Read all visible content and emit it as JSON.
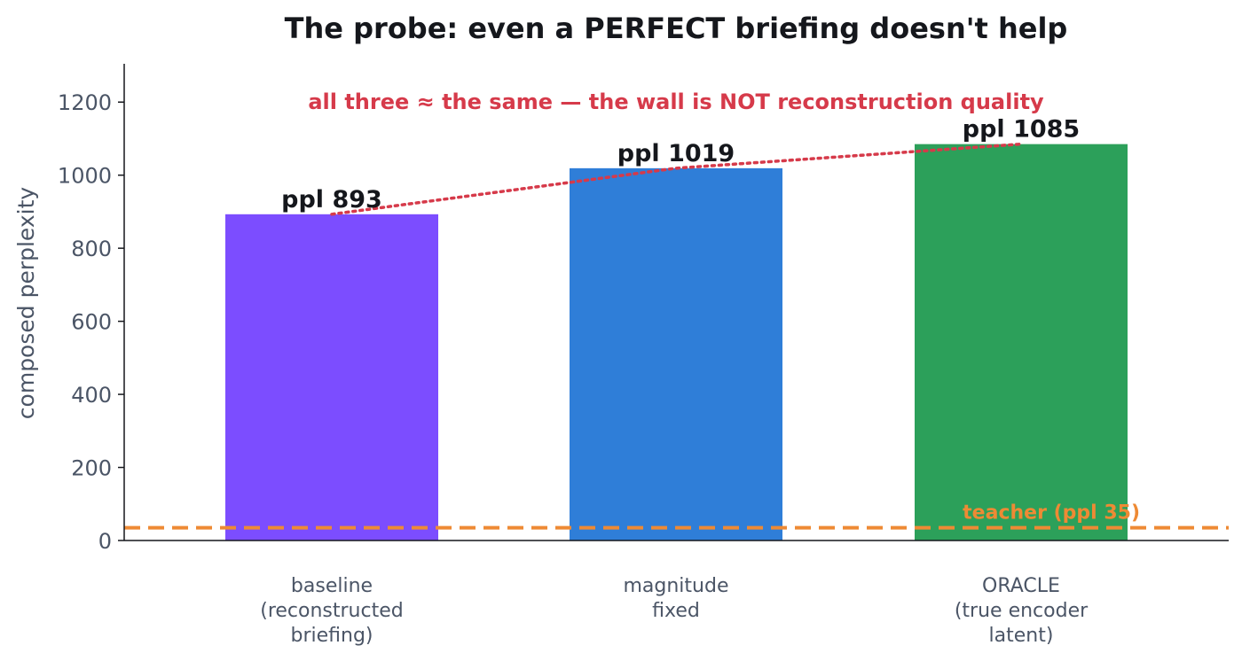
{
  "chart_data": {
    "type": "bar",
    "title": "The probe: even a PERFECT briefing doesn't help",
    "xlabel": "",
    "ylabel": "composed perplexity",
    "ylim": [
      0,
      1300
    ],
    "yticks": [
      0,
      200,
      400,
      600,
      800,
      1000,
      1200
    ],
    "grid": false,
    "categories": [
      [
        "baseline",
        "(reconstructed",
        "briefing)"
      ],
      [
        "magnitude",
        "fixed"
      ],
      [
        "ORACLE",
        "(true encoder",
        "latent)"
      ]
    ],
    "values": [
      893,
      1019,
      1085
    ],
    "bar_labels": [
      "ppl 893",
      "ppl 1019",
      "ppl 1085"
    ],
    "bar_colors": [
      "#7c4dff",
      "#2f7ed8",
      "#2ca05a"
    ],
    "trend_line": {
      "values": [
        893,
        1019,
        1085
      ],
      "color": "#d63a4a",
      "style": "dotted"
    },
    "reference_line": {
      "value": 35,
      "label": "teacher (ppl 35)",
      "color": "#ee8a34",
      "style": "dashed"
    },
    "annotation": {
      "text": "all three ≈ the same — the wall is NOT reconstruction quality",
      "color": "#d63a4a"
    }
  }
}
